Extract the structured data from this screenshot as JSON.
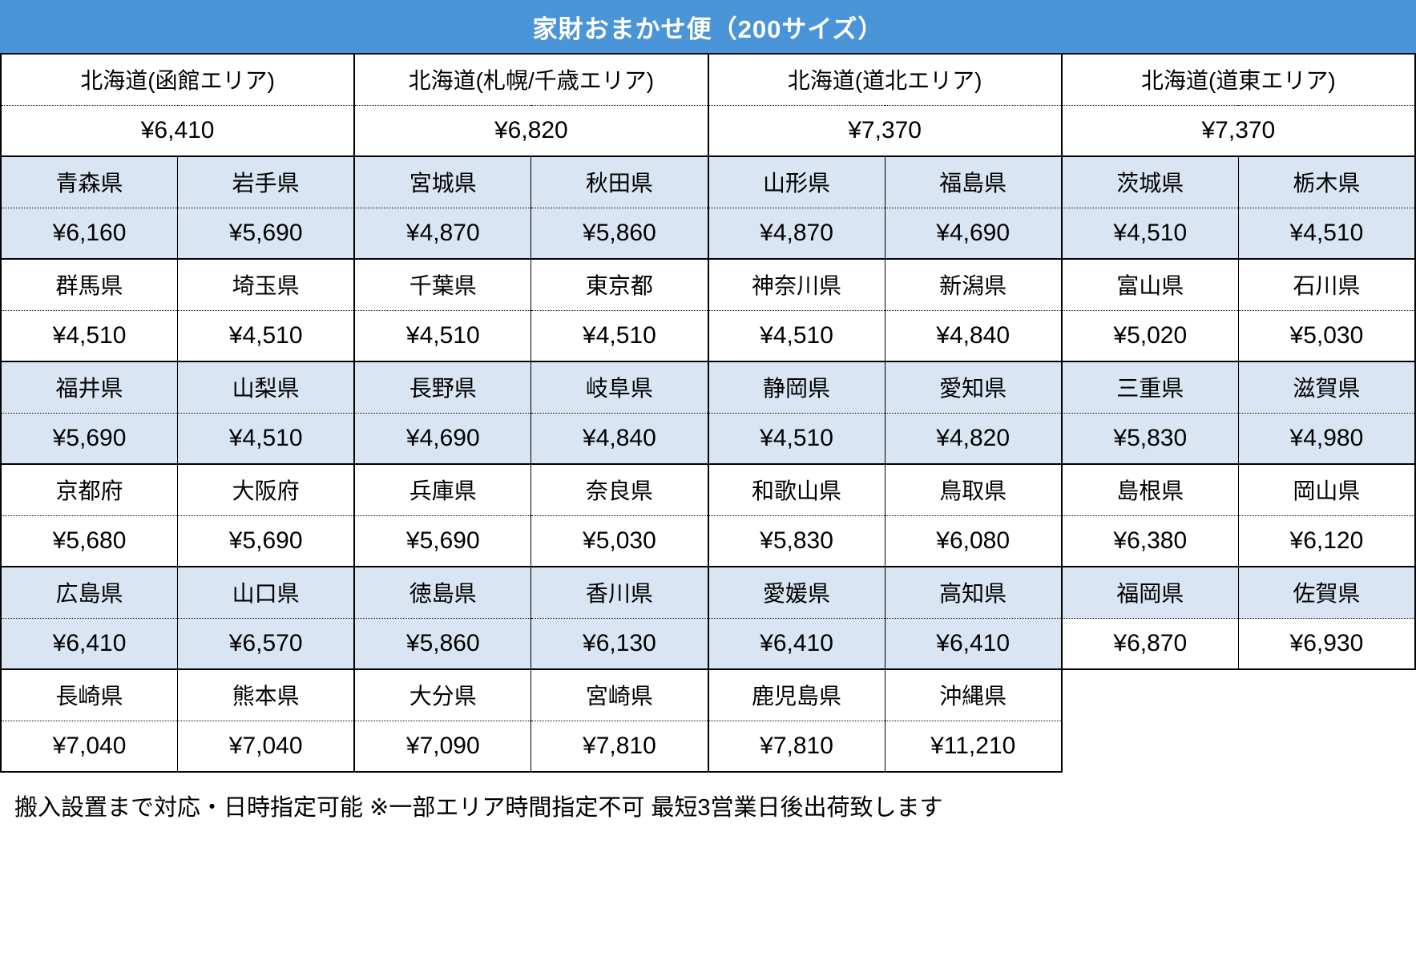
{
  "title": "家財おまかせ便（200サイズ）",
  "colors": {
    "header_bg": "#4a94d8",
    "header_text": "#ffffff",
    "band_blue": "#d9e5f2",
    "band_white": "#ffffff",
    "border": "#000000"
  },
  "hokkaido": [
    {
      "area": "北海道(函館エリア)",
      "price": "¥6,410"
    },
    {
      "area": "北海道(札幌/千歳エリア)",
      "price": "¥6,820"
    },
    {
      "area": "北海道(道北エリア)",
      "price": "¥7,370"
    },
    {
      "area": "北海道(道東エリア)",
      "price": "¥7,370"
    }
  ],
  "prefecture_groups": [
    {
      "band": "blue",
      "items": [
        {
          "name": "青森県",
          "price": "¥6,160"
        },
        {
          "name": "岩手県",
          "price": "¥5,690"
        },
        {
          "name": "宮城県",
          "price": "¥4,870"
        },
        {
          "name": "秋田県",
          "price": "¥5,860"
        },
        {
          "name": "山形県",
          "price": "¥4,870"
        },
        {
          "name": "福島県",
          "price": "¥4,690"
        },
        {
          "name": "茨城県",
          "price": "¥4,510"
        },
        {
          "name": "栃木県",
          "price": "¥4,510"
        }
      ]
    },
    {
      "band": "white",
      "items": [
        {
          "name": "群馬県",
          "price": "¥4,510"
        },
        {
          "name": "埼玉県",
          "price": "¥4,510"
        },
        {
          "name": "千葉県",
          "price": "¥4,510"
        },
        {
          "name": "東京都",
          "price": "¥4,510"
        },
        {
          "name": "神奈川県",
          "price": "¥4,510"
        },
        {
          "name": "新潟県",
          "price": "¥4,840"
        },
        {
          "name": "富山県",
          "price": "¥5,020"
        },
        {
          "name": "石川県",
          "price": "¥5,030"
        }
      ]
    },
    {
      "band": "blue",
      "items": [
        {
          "name": "福井県",
          "price": "¥5,690"
        },
        {
          "name": "山梨県",
          "price": "¥4,510"
        },
        {
          "name": "長野県",
          "price": "¥4,690"
        },
        {
          "name": "岐阜県",
          "price": "¥4,840"
        },
        {
          "name": "静岡県",
          "price": "¥4,510"
        },
        {
          "name": "愛知県",
          "price": "¥4,820"
        },
        {
          "name": "三重県",
          "price": "¥5,830"
        },
        {
          "name": "滋賀県",
          "price": "¥4,980"
        }
      ]
    },
    {
      "band": "white",
      "items": [
        {
          "name": "京都府",
          "price": "¥5,680"
        },
        {
          "name": "大阪府",
          "price": "¥5,690"
        },
        {
          "name": "兵庫県",
          "price": "¥5,690"
        },
        {
          "name": "奈良県",
          "price": "¥5,030"
        },
        {
          "name": "和歌山県",
          "price": "¥5,830"
        },
        {
          "name": "鳥取県",
          "price": "¥6,080"
        },
        {
          "name": "島根県",
          "price": "¥6,380"
        },
        {
          "name": "岡山県",
          "price": "¥6,120"
        }
      ]
    },
    {
      "band": "blue",
      "items": [
        {
          "name": "広島県",
          "price": "¥6,410"
        },
        {
          "name": "山口県",
          "price": "¥6,570"
        },
        {
          "name": "徳島県",
          "price": "¥5,860"
        },
        {
          "name": "香川県",
          "price": "¥6,130"
        },
        {
          "name": "愛媛県",
          "price": "¥6,410"
        },
        {
          "name": "高知県",
          "price": "¥6,410"
        },
        {
          "name": "福岡県",
          "price": "¥6,870",
          "price_white": true
        },
        {
          "name": "佐賀県",
          "price": "¥6,930",
          "price_white": true
        }
      ]
    },
    {
      "band": "white",
      "items": [
        {
          "name": "長崎県",
          "price": "¥7,040"
        },
        {
          "name": "熊本県",
          "price": "¥7,040"
        },
        {
          "name": "大分県",
          "price": "¥7,090"
        },
        {
          "name": "宮崎県",
          "price": "¥7,810"
        },
        {
          "name": "鹿児島県",
          "price": "¥7,810"
        },
        {
          "name": "沖縄県",
          "price": "¥11,210"
        }
      ]
    }
  ],
  "footer_note": "搬入設置まで対応・日時指定可能 ※一部エリア時間指定不可 最短3営業日後出荷致します"
}
